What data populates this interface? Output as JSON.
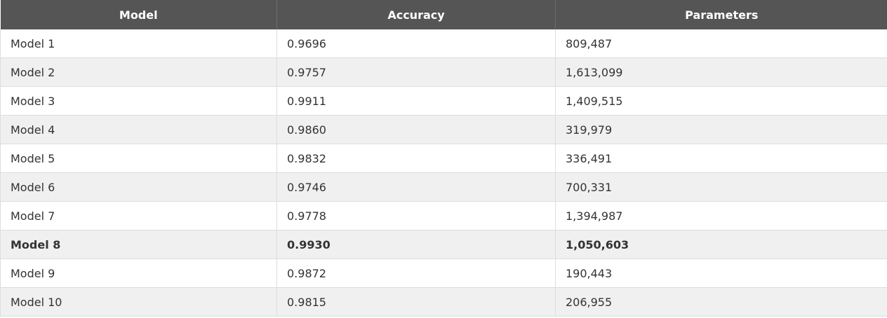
{
  "chart_data": {
    "type": "table",
    "columns": [
      "Model",
      "Accuracy",
      "Parameters"
    ],
    "rows": [
      {
        "model": "Model 1",
        "accuracy": "0.9696",
        "parameters": "809,487",
        "emphasis": false
      },
      {
        "model": "Model 2",
        "accuracy": "0.9757",
        "parameters": "1,613,099",
        "emphasis": false
      },
      {
        "model": "Model 3",
        "accuracy": "0.9911",
        "parameters": "1,409,515",
        "emphasis": false
      },
      {
        "model": "Model 4",
        "accuracy": "0.9860",
        "parameters": "319,979",
        "emphasis": false
      },
      {
        "model": "Model 5",
        "accuracy": "0.9832",
        "parameters": "336,491",
        "emphasis": false
      },
      {
        "model": "Model 6",
        "accuracy": "0.9746",
        "parameters": "700,331",
        "emphasis": false
      },
      {
        "model": "Model 7",
        "accuracy": "0.9778",
        "parameters": "1,394,987",
        "emphasis": false
      },
      {
        "model": "Model 8",
        "accuracy": "0.9930",
        "parameters": "1,050,603",
        "emphasis": true
      },
      {
        "model": "Model 9",
        "accuracy": "0.9872",
        "parameters": "190,443",
        "emphasis": false
      },
      {
        "model": "Model 10",
        "accuracy": "0.9815",
        "parameters": "206,955",
        "emphasis": false
      }
    ],
    "colors": {
      "header_bg": "#555555",
      "header_text": "#ffffff",
      "row_alt_bg": "#f0f0f0",
      "row_bg": "#ffffff"
    }
  }
}
